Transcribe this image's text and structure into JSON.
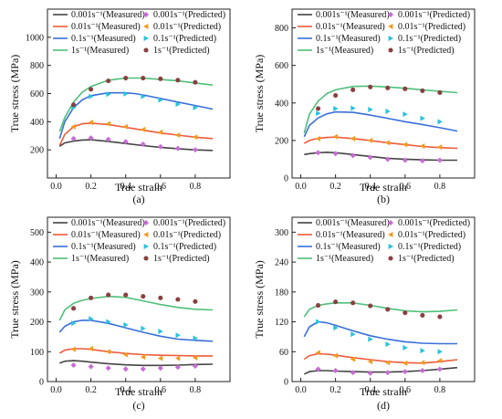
{
  "figure": {
    "colors": {
      "s0001": "#444444",
      "s001": "#ee5a3a",
      "s01": "#3a6fd8",
      "s1": "#4fbf7a",
      "p0001": "#c86bd6",
      "p001": "#f29b1c",
      "p01": "#27c2e0",
      "p1": "#8a4040"
    },
    "marker_shapes": {
      "s0001": "diamond",
      "s001": "triangle-left",
      "s01": "triangle-right",
      "s1": "circle"
    }
  },
  "chart_data": [
    {
      "type": "line",
      "panel_label": "(a)",
      "xlabel": "True strain",
      "ylabel": "True stress (MPa)",
      "xlim": [
        -0.05,
        1.0
      ],
      "ylim": [
        0,
        1200
      ],
      "xticks": [
        "0.0",
        "0.2",
        "0.4",
        "0.6",
        "0.8"
      ],
      "xtick_values": [
        0,
        0.2,
        0.4,
        0.6,
        0.8
      ],
      "yticks": [
        "200",
        "400",
        "600",
        "800",
        "1000"
      ],
      "ytick_values": [
        200,
        400,
        600,
        800,
        1000
      ],
      "legend": [
        "0.001s⁻¹(Measured)",
        "0.001s⁻¹(Predicted)",
        "0.01s⁻¹(Measured)",
        "0.01s⁻¹(Predicted)",
        "0.1s⁻¹(Measured)",
        "0.1s⁻¹(Predicted)",
        "1s⁻¹(Measured)",
        "1s⁻¹(Predicted)"
      ],
      "series": [
        {
          "key": "s0001",
          "kind": "measured",
          "x": [
            0.02,
            0.05,
            0.1,
            0.15,
            0.2,
            0.3,
            0.4,
            0.5,
            0.6,
            0.7,
            0.8,
            0.9
          ],
          "y": [
            225,
            250,
            262,
            270,
            272,
            260,
            245,
            230,
            218,
            208,
            200,
            196
          ]
        },
        {
          "key": "p0001",
          "kind": "predicted",
          "x": [
            0.1,
            0.2,
            0.3,
            0.4,
            0.5,
            0.6,
            0.7,
            0.8
          ],
          "y": [
            280,
            285,
            275,
            258,
            240,
            222,
            210,
            200
          ]
        },
        {
          "key": "s001",
          "kind": "measured",
          "x": [
            0.02,
            0.05,
            0.1,
            0.15,
            0.2,
            0.3,
            0.4,
            0.5,
            0.6,
            0.7,
            0.8,
            0.9
          ],
          "y": [
            230,
            310,
            365,
            385,
            390,
            380,
            360,
            340,
            320,
            305,
            290,
            280
          ]
        },
        {
          "key": "p001",
          "kind": "predicted",
          "x": [
            0.1,
            0.2,
            0.3,
            0.4,
            0.5,
            0.6,
            0.7,
            0.8
          ],
          "y": [
            365,
            395,
            385,
            365,
            345,
            325,
            305,
            290
          ]
        },
        {
          "key": "s01",
          "kind": "measured",
          "x": [
            0.02,
            0.05,
            0.1,
            0.15,
            0.2,
            0.3,
            0.4,
            0.45,
            0.5,
            0.6,
            0.7,
            0.8,
            0.9
          ],
          "y": [
            280,
            400,
            500,
            555,
            585,
            605,
            605,
            600,
            590,
            565,
            540,
            515,
            490
          ]
        },
        {
          "key": "p01",
          "kind": "predicted",
          "x": [
            0.1,
            0.2,
            0.3,
            0.4,
            0.5,
            0.6,
            0.7,
            0.8
          ],
          "y": [
            500,
            580,
            595,
            598,
            580,
            555,
            525,
            500
          ]
        },
        {
          "key": "s1",
          "kind": "measured",
          "x": [
            0.02,
            0.05,
            0.1,
            0.15,
            0.2,
            0.3,
            0.4,
            0.5,
            0.6,
            0.7,
            0.8,
            0.9
          ],
          "y": [
            330,
            430,
            540,
            610,
            650,
            695,
            710,
            710,
            700,
            690,
            675,
            660
          ]
        },
        {
          "key": "p1",
          "kind": "predicted",
          "x": [
            0.1,
            0.2,
            0.3,
            0.4,
            0.5,
            0.6,
            0.7,
            0.8
          ],
          "y": [
            520,
            630,
            690,
            710,
            710,
            705,
            695,
            680
          ]
        }
      ]
    },
    {
      "type": "line",
      "panel_label": "(b)",
      "xlabel": "True strain",
      "ylabel": "True stress (MPa)",
      "xlim": [
        -0.05,
        1.0
      ],
      "ylim": [
        0,
        900
      ],
      "xticks": [
        "0.0",
        "0.2",
        "0.4",
        "0.6",
        "0.8"
      ],
      "xtick_values": [
        0,
        0.2,
        0.4,
        0.6,
        0.8
      ],
      "yticks": [
        "0",
        "200",
        "400",
        "600",
        "800"
      ],
      "ytick_values": [
        0,
        200,
        400,
        600,
        800
      ],
      "legend": [
        "0.001s⁻¹(Measured)",
        "0.001s⁻¹(Predicted)",
        "0.01s⁻¹(Measured)",
        "0.01s⁻¹(Predicted)",
        "0.1s⁻¹(Measured)",
        "0.1s⁻¹(Predicted)",
        "1s⁻¹(Measured)",
        "1s⁻¹(Predicted)"
      ],
      "series": [
        {
          "key": "s0001",
          "kind": "measured",
          "x": [
            0.02,
            0.05,
            0.1,
            0.15,
            0.2,
            0.3,
            0.4,
            0.5,
            0.6,
            0.7,
            0.8,
            0.9
          ],
          "y": [
            125,
            130,
            135,
            137,
            135,
            125,
            115,
            105,
            100,
            97,
            95,
            95
          ]
        },
        {
          "key": "p0001",
          "kind": "predicted",
          "x": [
            0.1,
            0.2,
            0.3,
            0.4,
            0.5,
            0.6,
            0.7,
            0.8
          ],
          "y": [
            135,
            130,
            120,
            110,
            100,
            95,
            92,
            95
          ]
        },
        {
          "key": "s001",
          "kind": "measured",
          "x": [
            0.02,
            0.05,
            0.1,
            0.15,
            0.2,
            0.3,
            0.4,
            0.5,
            0.6,
            0.7,
            0.8,
            0.9
          ],
          "y": [
            185,
            200,
            212,
            216,
            218,
            210,
            200,
            188,
            178,
            168,
            162,
            158
          ]
        },
        {
          "key": "p001",
          "kind": "predicted",
          "x": [
            0.1,
            0.2,
            0.3,
            0.4,
            0.5,
            0.6,
            0.7,
            0.8
          ],
          "y": [
            210,
            220,
            210,
            200,
            188,
            178,
            170,
            165
          ]
        },
        {
          "key": "s01",
          "kind": "measured",
          "x": [
            0.02,
            0.05,
            0.1,
            0.15,
            0.2,
            0.3,
            0.4,
            0.5,
            0.6,
            0.7,
            0.8,
            0.9
          ],
          "y": [
            220,
            280,
            320,
            342,
            352,
            350,
            335,
            318,
            300,
            285,
            268,
            250
          ]
        },
        {
          "key": "p01",
          "kind": "predicted",
          "x": [
            0.1,
            0.2,
            0.3,
            0.4,
            0.5,
            0.6,
            0.7,
            0.8
          ],
          "y": [
            345,
            370,
            372,
            365,
            355,
            340,
            318,
            300
          ]
        },
        {
          "key": "s1",
          "kind": "measured",
          "x": [
            0.02,
            0.05,
            0.1,
            0.15,
            0.2,
            0.3,
            0.4,
            0.5,
            0.6,
            0.7,
            0.8,
            0.9
          ],
          "y": [
            240,
            340,
            410,
            450,
            470,
            488,
            490,
            485,
            478,
            470,
            462,
            455
          ]
        },
        {
          "key": "p1",
          "kind": "predicted",
          "x": [
            0.1,
            0.2,
            0.3,
            0.4,
            0.5,
            0.6,
            0.7,
            0.8
          ],
          "y": [
            370,
            440,
            470,
            485,
            480,
            475,
            465,
            455
          ]
        }
      ]
    },
    {
      "type": "line",
      "panel_label": "(c)",
      "xlabel": "True strain",
      "ylabel": "True stress (MPa)",
      "xlim": [
        -0.05,
        1.0
      ],
      "ylim": [
        0,
        550
      ],
      "xticks": [
        "0.0",
        "0.2",
        "0.4",
        "0.6",
        "0.8"
      ],
      "xtick_values": [
        0,
        0.2,
        0.4,
        0.6,
        0.8
      ],
      "yticks": [
        "0",
        "100",
        "200",
        "300",
        "400",
        "500"
      ],
      "ytick_values": [
        0,
        100,
        200,
        300,
        400,
        500
      ],
      "legend": [
        "0.001s⁻¹(Measured)",
        "0.001s⁻¹(Predicted)",
        "0.01s⁻¹(Measured)",
        "0.01s⁻¹(Predicted)",
        "0.1s⁻¹(Measured)",
        "0.1s⁻¹(Predicted)",
        "1s⁻¹(Measured)",
        "1s⁻¹(Predicted)"
      ],
      "series": [
        {
          "key": "s0001",
          "kind": "measured",
          "x": [
            0.02,
            0.05,
            0.1,
            0.15,
            0.2,
            0.3,
            0.4,
            0.5,
            0.6,
            0.7,
            0.8,
            0.9
          ],
          "y": [
            62,
            68,
            70,
            68,
            65,
            60,
            56,
            54,
            54,
            55,
            57,
            58
          ]
        },
        {
          "key": "p0001",
          "kind": "predicted",
          "x": [
            0.1,
            0.2,
            0.3,
            0.4,
            0.5,
            0.6,
            0.7,
            0.8
          ],
          "y": [
            55,
            50,
            45,
            42,
            42,
            45,
            48,
            52
          ]
        },
        {
          "key": "s001",
          "kind": "measured",
          "x": [
            0.02,
            0.05,
            0.1,
            0.15,
            0.2,
            0.3,
            0.4,
            0.5,
            0.6,
            0.7,
            0.8,
            0.9
          ],
          "y": [
            95,
            105,
            110,
            110,
            108,
            100,
            94,
            90,
            88,
            87,
            86,
            86
          ]
        },
        {
          "key": "p001",
          "kind": "predicted",
          "x": [
            0.1,
            0.2,
            0.3,
            0.4,
            0.5,
            0.6,
            0.7,
            0.8
          ],
          "y": [
            108,
            110,
            100,
            90,
            82,
            78,
            78,
            80
          ]
        },
        {
          "key": "s01",
          "kind": "measured",
          "x": [
            0.02,
            0.05,
            0.1,
            0.15,
            0.2,
            0.3,
            0.4,
            0.5,
            0.6,
            0.7,
            0.8,
            0.9
          ],
          "y": [
            165,
            185,
            200,
            205,
            205,
            195,
            180,
            165,
            152,
            142,
            138,
            135
          ]
        },
        {
          "key": "p01",
          "kind": "predicted",
          "x": [
            0.1,
            0.2,
            0.3,
            0.4,
            0.5,
            0.6,
            0.7,
            0.8
          ],
          "y": [
            195,
            210,
            200,
            190,
            178,
            168,
            155,
            145
          ]
        },
        {
          "key": "s1",
          "kind": "measured",
          "x": [
            0.02,
            0.05,
            0.1,
            0.15,
            0.2,
            0.3,
            0.4,
            0.5,
            0.6,
            0.7,
            0.8,
            0.9
          ],
          "y": [
            205,
            240,
            262,
            272,
            278,
            285,
            282,
            270,
            258,
            248,
            242,
            240
          ]
        },
        {
          "key": "p1",
          "kind": "predicted",
          "x": [
            0.1,
            0.2,
            0.3,
            0.4,
            0.5,
            0.6,
            0.7,
            0.8
          ],
          "y": [
            245,
            280,
            290,
            290,
            285,
            280,
            275,
            268
          ]
        }
      ]
    },
    {
      "type": "line",
      "panel_label": "(d)",
      "xlabel": "True strain",
      "ylabel": "True stress (MPa)",
      "xlim": [
        -0.05,
        1.0
      ],
      "ylim": [
        0,
        330
      ],
      "xticks": [
        "0.0",
        "0.2",
        "0.4",
        "0.6",
        "0.8"
      ],
      "xtick_values": [
        0,
        0.2,
        0.4,
        0.6,
        0.8
      ],
      "yticks": [
        "0",
        "60",
        "120",
        "180",
        "240",
        "300"
      ],
      "ytick_values": [
        0,
        60,
        120,
        180,
        240,
        300
      ],
      "legend": [
        "0.001s⁻¹(Measured)",
        "0.001s⁻¹(Predicted)",
        "0.01s⁻¹(Measured)",
        "0.01s⁻¹(Predicted)",
        "0.1s⁻¹(Measured)",
        "0.1s⁻¹(Predicted)",
        "1s⁻¹(Measured)",
        "1s⁻¹(Predicted)"
      ],
      "series": [
        {
          "key": "s0001",
          "kind": "measured",
          "x": [
            0.02,
            0.05,
            0.1,
            0.15,
            0.2,
            0.3,
            0.4,
            0.5,
            0.6,
            0.7,
            0.8,
            0.9
          ],
          "y": [
            15,
            20,
            22,
            22,
            21,
            20,
            19,
            19,
            20,
            22,
            25,
            28
          ]
        },
        {
          "key": "p0001",
          "kind": "predicted",
          "x": [
            0.1,
            0.2,
            0.3,
            0.4,
            0.5,
            0.6,
            0.7,
            0.8
          ],
          "y": [
            25,
            22,
            18,
            17,
            18,
            20,
            22,
            25
          ]
        },
        {
          "key": "s001",
          "kind": "measured",
          "x": [
            0.02,
            0.05,
            0.1,
            0.15,
            0.2,
            0.3,
            0.4,
            0.5,
            0.6,
            0.7,
            0.8,
            0.9
          ],
          "y": [
            45,
            52,
            56,
            55,
            53,
            48,
            44,
            40,
            38,
            37,
            40,
            44
          ]
        },
        {
          "key": "p001",
          "kind": "predicted",
          "x": [
            0.1,
            0.2,
            0.3,
            0.4,
            0.5,
            0.6,
            0.7,
            0.8
          ],
          "y": [
            58,
            52,
            45,
            40,
            38,
            37,
            38,
            42
          ]
        },
        {
          "key": "s01",
          "kind": "measured",
          "x": [
            0.02,
            0.05,
            0.1,
            0.15,
            0.2,
            0.3,
            0.4,
            0.5,
            0.6,
            0.7,
            0.8,
            0.9
          ],
          "y": [
            90,
            110,
            120,
            118,
            113,
            102,
            92,
            85,
            80,
            77,
            76,
            76
          ]
        },
        {
          "key": "p01",
          "kind": "predicted",
          "x": [
            0.1,
            0.2,
            0.3,
            0.4,
            0.5,
            0.6,
            0.7,
            0.8
          ],
          "y": [
            120,
            108,
            95,
            85,
            75,
            68,
            62,
            60
          ]
        },
        {
          "key": "s1",
          "kind": "measured",
          "x": [
            0.02,
            0.05,
            0.1,
            0.15,
            0.2,
            0.3,
            0.4,
            0.5,
            0.6,
            0.7,
            0.8,
            0.9
          ],
          "y": [
            130,
            145,
            153,
            156,
            158,
            158,
            153,
            147,
            142,
            140,
            141,
            144
          ]
        },
        {
          "key": "p1",
          "kind": "predicted",
          "x": [
            0.1,
            0.2,
            0.3,
            0.4,
            0.5,
            0.6,
            0.7,
            0.8
          ],
          "y": [
            153,
            160,
            158,
            152,
            145,
            138,
            133,
            130
          ]
        }
      ]
    }
  ]
}
